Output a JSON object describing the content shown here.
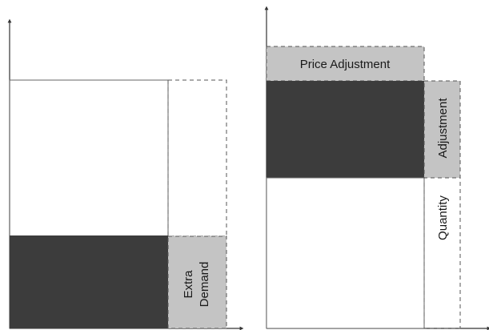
{
  "colors": {
    "dark_fill": "#3c3c3c",
    "grey_fill": "#c4c4c4",
    "dashed_stroke": "#555555",
    "axis": "#333333"
  },
  "left_panel": {
    "extra_demand_line1": "Extra",
    "extra_demand_line2": "Demand"
  },
  "right_panel": {
    "price_adjustment": "Price Adjustment",
    "adjustment": "Adjustment",
    "quantity": "Quantity"
  }
}
